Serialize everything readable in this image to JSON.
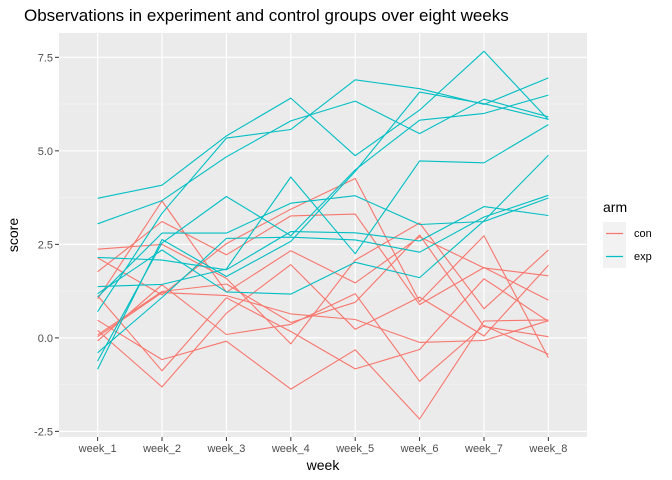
{
  "chart_data": {
    "type": "line",
    "title": "Observations in experiment and control groups over eight weeks",
    "xlabel": "week",
    "ylabel": "score",
    "categories": [
      "week_1",
      "week_2",
      "week_3",
      "week_4",
      "week_5",
      "week_6",
      "week_7",
      "week_8"
    ],
    "ylim": [
      -2.65,
      8.15
    ],
    "yticks": [
      -2.5,
      0.0,
      2.5,
      5.0,
      7.5
    ],
    "ytick_labels": [
      "-2.5",
      "0.0",
      "2.5",
      "5.0",
      "7.5"
    ],
    "grid": true,
    "legend": {
      "title": "arm",
      "placement": "right",
      "entries": [
        {
          "label": "con",
          "color": "#F8766D"
        },
        {
          "label": "exp",
          "color": "#00BFC4"
        }
      ]
    },
    "series": [
      {
        "group": "con",
        "values": [
          0.2,
          -1.31,
          0.66,
          1.96,
          0.23,
          1.09,
          0.05,
          1.94
        ]
      },
      {
        "group": "con",
        "values": [
          1.13,
          -0.88,
          1.07,
          0.17,
          -0.83,
          -0.31,
          1.58,
          0.44
        ]
      },
      {
        "group": "con",
        "values": [
          1.77,
          3.11,
          2.22,
          3.26,
          3.31,
          0.89,
          1.88,
          1.01
        ]
      },
      {
        "group": "con",
        "values": [
          1.04,
          3.66,
          1.22,
          2.33,
          1.47,
          2.7,
          1.87,
          1.66
        ]
      },
      {
        "group": "con",
        "values": [
          0.47,
          -0.58,
          -0.09,
          -1.37,
          -0.32,
          -2.17,
          0.45,
          0.48
        ]
      },
      {
        "group": "con",
        "values": [
          2.37,
          2.5,
          1.59,
          -0.16,
          2.08,
          3.07,
          0.78,
          2.35
        ]
      },
      {
        "group": "con",
        "values": [
          0.03,
          1.21,
          1.13,
          0.64,
          0.49,
          -0.12,
          -0.07,
          0.46
        ]
      },
      {
        "group": "con",
        "values": [
          -0.08,
          1.42,
          0.09,
          0.36,
          1.18,
          -1.16,
          0.33,
          -0.44
        ]
      },
      {
        "group": "con",
        "values": [
          0.08,
          1.24,
          1.44,
          0.41,
          0.95,
          2.75,
          0.3,
          0.03
        ]
      },
      {
        "group": "con",
        "values": [
          2.14,
          1.15,
          2.52,
          3.44,
          4.26,
          0.97,
          2.73,
          -0.53
        ]
      },
      {
        "group": "exp",
        "values": [
          3.05,
          3.67,
          4.84,
          5.8,
          6.33,
          5.46,
          6.38,
          5.91
        ]
      },
      {
        "group": "exp",
        "values": [
          -0.84,
          2.63,
          1.64,
          2.58,
          4.45,
          6.57,
          6.26,
          5.84
        ]
      },
      {
        "group": "exp",
        "values": [
          2.15,
          2.08,
          1.82,
          2.84,
          2.81,
          2.59,
          3.51,
          3.27
        ]
      },
      {
        "group": "exp",
        "values": [
          -0.62,
          2.54,
          3.78,
          2.73,
          4.49,
          5.82,
          6.0,
          6.49
        ]
      },
      {
        "group": "exp",
        "values": [
          0.7,
          3.33,
          5.34,
          5.57,
          6.9,
          6.66,
          6.24,
          6.95
        ]
      },
      {
        "group": "exp",
        "values": [
          3.73,
          4.08,
          5.4,
          6.41,
          4.87,
          6.09,
          7.66,
          5.83
        ]
      },
      {
        "group": "exp",
        "values": [
          1.18,
          2.35,
          1.23,
          1.17,
          2.02,
          1.61,
          3.13,
          4.88
        ]
      },
      {
        "group": "exp",
        "values": [
          1.37,
          1.43,
          1.84,
          4.3,
          2.25,
          4.73,
          4.68,
          5.7
        ]
      },
      {
        "group": "exp",
        "values": [
          -0.4,
          1.08,
          2.66,
          2.69,
          2.62,
          2.29,
          3.23,
          3.81
        ]
      },
      {
        "group": "exp",
        "values": [
          1.09,
          2.8,
          2.8,
          3.6,
          3.8,
          3.03,
          3.11,
          3.74
        ]
      }
    ]
  }
}
